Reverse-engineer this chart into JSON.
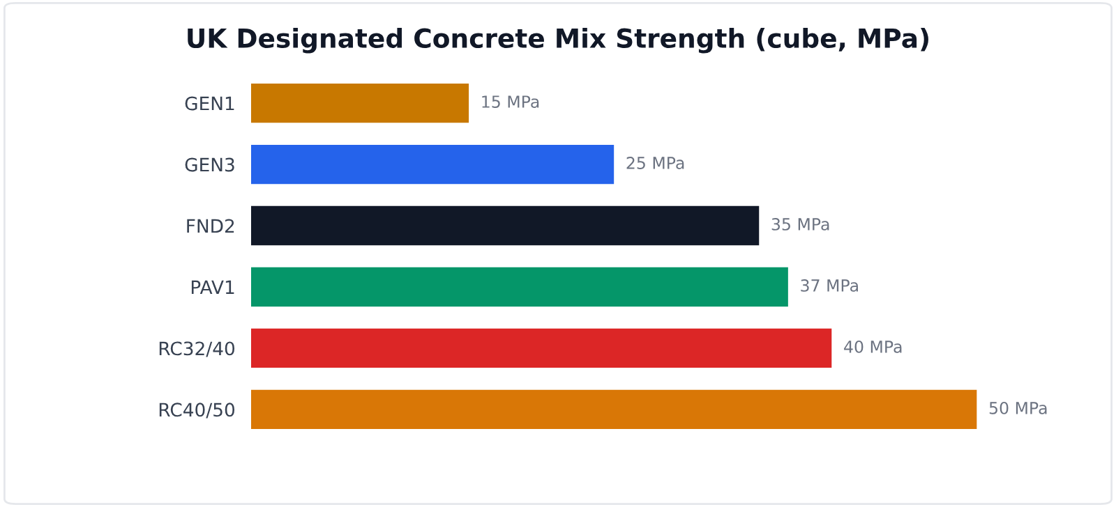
{
  "chart_data": {
    "type": "bar",
    "orientation": "horizontal",
    "title": "UK Designated Concrete Mix Strength (cube, MPa)",
    "categories": [
      "GEN1",
      "GEN3",
      "FND2",
      "PAV1",
      "RC32/40",
      "RC40/50"
    ],
    "values": [
      15,
      25,
      35,
      37,
      40,
      50
    ],
    "colors": [
      "#c87800",
      "#2563eb",
      "#111827",
      "#059669",
      "#dc2626",
      "#d97706"
    ],
    "value_labels": [
      "15 MPa",
      "25 MPa",
      "35 MPa",
      "37 MPa",
      "40 MPa",
      "50 MPa"
    ],
    "tick_labels": "y"
  }
}
